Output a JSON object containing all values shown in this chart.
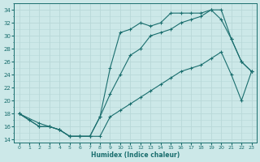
{
  "title": "",
  "xlabel": "Humidex (Indice chaleur)",
  "bg_color": "#cce8e8",
  "line_color": "#1a6e6e",
  "grid_major_color": "#b8d8d8",
  "grid_minor_color": "#cce0e0",
  "xlim": [
    -0.5,
    23.5
  ],
  "ylim": [
    13.5,
    35
  ],
  "xticks": [
    0,
    1,
    2,
    3,
    4,
    5,
    6,
    7,
    8,
    9,
    10,
    11,
    12,
    13,
    14,
    15,
    16,
    17,
    18,
    19,
    20,
    21,
    22,
    23
  ],
  "yticks": [
    14,
    16,
    18,
    20,
    22,
    24,
    26,
    28,
    30,
    32,
    34
  ],
  "line1_x": [
    0,
    1,
    2,
    3,
    4,
    5,
    6,
    7,
    8,
    9,
    10,
    11,
    12,
    13,
    14,
    15,
    16,
    17,
    18,
    19,
    20,
    21,
    22,
    23
  ],
  "line1_y": [
    18,
    17,
    16,
    16,
    15.5,
    14.5,
    14.5,
    14.5,
    17.5,
    25,
    30.5,
    31,
    32,
    31.5,
    32,
    33.5,
    33.5,
    33.5,
    33.5,
    34,
    34,
    29.5,
    26,
    24.5
  ],
  "line2_x": [
    0,
    2,
    3,
    4,
    5,
    6,
    7,
    8,
    9,
    10,
    11,
    12,
    13,
    14,
    15,
    16,
    17,
    18,
    19,
    20,
    21,
    22,
    23
  ],
  "line2_y": [
    18,
    16,
    16,
    15.5,
    14.5,
    14.5,
    14.5,
    17.5,
    21,
    24,
    27,
    28,
    30,
    30.5,
    31,
    32,
    32.5,
    33,
    34,
    32.5,
    29.5,
    26,
    24.5
  ],
  "line3_x": [
    0,
    2,
    3,
    4,
    5,
    6,
    7,
    8,
    9,
    10,
    11,
    12,
    13,
    14,
    15,
    16,
    17,
    18,
    19,
    20,
    21,
    22,
    23
  ],
  "line3_y": [
    18,
    16.5,
    16,
    15.5,
    14.5,
    14.5,
    14.5,
    14.5,
    17.5,
    18.5,
    19.5,
    20.5,
    21.5,
    22.5,
    23.5,
    24.5,
    25,
    25.5,
    26.5,
    27.5,
    24,
    20,
    24.5
  ]
}
